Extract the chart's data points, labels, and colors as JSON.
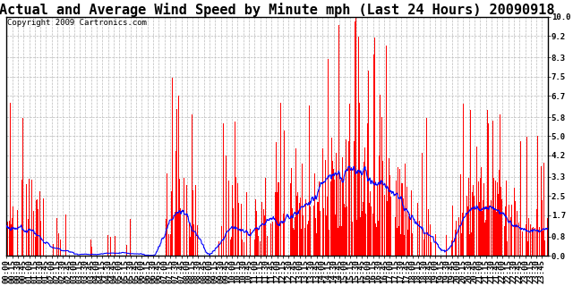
{
  "title": "Actual and Average Wind Speed by Minute mph (Last 24 Hours) 20090918",
  "copyright": "Copyright 2009 Cartronics.com",
  "yticks": [
    0.0,
    0.8,
    1.7,
    2.5,
    3.3,
    4.2,
    5.0,
    5.8,
    6.7,
    7.5,
    8.3,
    9.2,
    10.0
  ],
  "ymax": 10.0,
  "bar_color": "#FF0000",
  "line_color": "#0000FF",
  "background_color": "#FFFFFF",
  "grid_color": "#BBBBBB",
  "title_fontsize": 11,
  "copyright_fontsize": 6.5,
  "tick_fontsize": 6.5
}
